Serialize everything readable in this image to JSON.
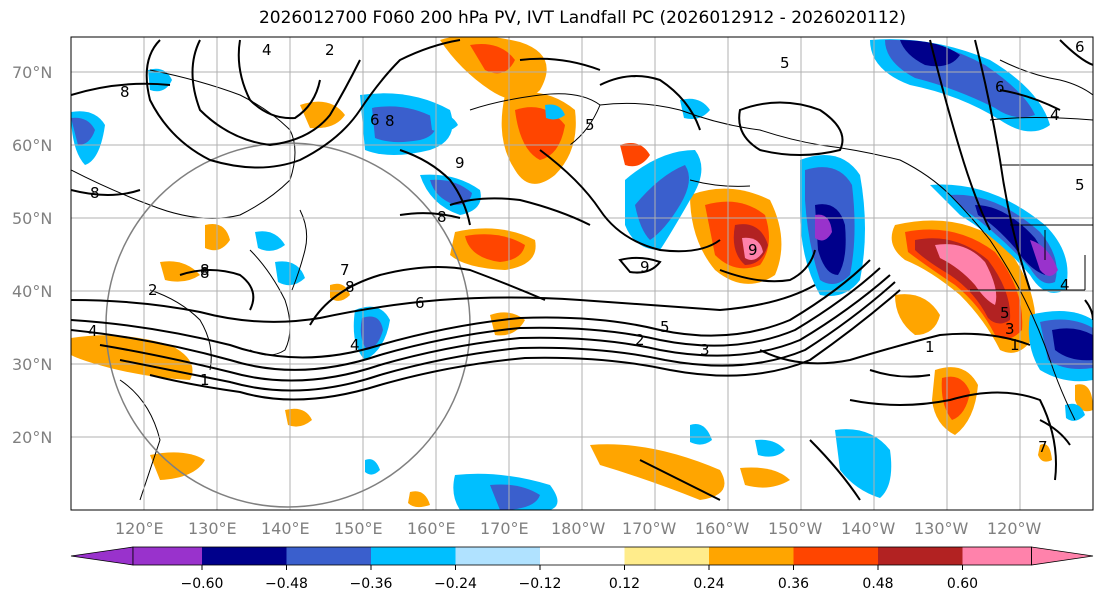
{
  "title": "2026012700 F060 200 hPa PV, IVT Landfall PC (2026012912 - 2026020112)",
  "lat_labels": [
    "70°N",
    "60°N",
    "50°N",
    "40°N",
    "30°N",
    "20°N"
  ],
  "lon_labels": [
    "120°E",
    "130°E",
    "140°E",
    "150°E",
    "160°E",
    "170°E",
    "180°W",
    "170°W",
    "160°W",
    "150°W",
    "140°W",
    "130°W",
    "120°W"
  ],
  "colorbar": {
    "ticks": [
      "−0.60",
      "−0.48",
      "−0.36",
      "−0.24",
      "−0.12",
      "0.12",
      "0.24",
      "0.36",
      "0.48",
      "0.60"
    ],
    "colors": [
      "#9932cc",
      "#00008b",
      "#3a5fcd",
      "#00bfff",
      "#b0e2ff",
      "#ffffff",
      "#ffec8b",
      "#ffa500",
      "#ff4500",
      "#b22222",
      "#ff82ab"
    ]
  },
  "contour_labels": [
    "8",
    "8",
    "8",
    "8",
    "6",
    "4",
    "2",
    "1",
    "3",
    "5",
    "2",
    "4",
    "6",
    "7",
    "9",
    "9",
    "5",
    "1",
    "5",
    "6",
    "4",
    "8",
    "9",
    "8",
    "8",
    "7",
    "5",
    "3",
    "1",
    "2",
    "4",
    "4",
    "6",
    "5"
  ]
}
